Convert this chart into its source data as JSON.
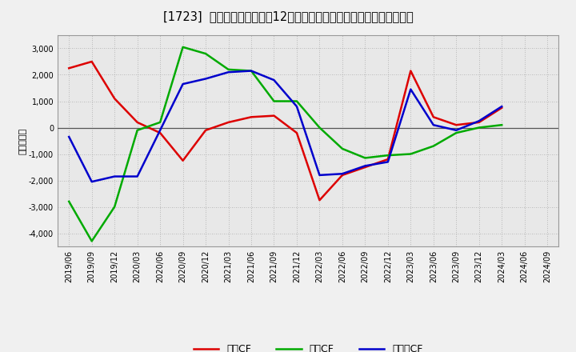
{
  "title": "[1723]  キャッシュフローの12か月移動合計の対前年同期増減額の推移",
  "ylabel": "（百万円）",
  "background_color": "#f0f0f0",
  "plot_bg_color": "#e8e8e8",
  "grid_color": "#aaaaaa",
  "ylim": [
    -4500,
    3500
  ],
  "yticks": [
    -4000,
    -3000,
    -2000,
    -1000,
    0,
    1000,
    2000,
    3000
  ],
  "x_labels": [
    "2019/06",
    "2019/09",
    "2019/12",
    "2020/03",
    "2020/06",
    "2020/09",
    "2020/12",
    "2021/03",
    "2021/06",
    "2021/09",
    "2021/12",
    "2022/03",
    "2022/06",
    "2022/09",
    "2022/12",
    "2023/03",
    "2023/06",
    "2023/09",
    "2023/12",
    "2024/03",
    "2024/06",
    "2024/09"
  ],
  "series": {
    "営業CF": {
      "color": "#dd0000",
      "values": [
        2250,
        2500,
        1100,
        200,
        -200,
        -1250,
        -100,
        200,
        400,
        450,
        -200,
        -2750,
        -1800,
        -1500,
        -1200,
        2150,
        400,
        100,
        200,
        750,
        null,
        null
      ]
    },
    "投資CF": {
      "color": "#00aa00",
      "values": [
        -2800,
        -4300,
        -3000,
        -100,
        200,
        3050,
        2800,
        2200,
        2150,
        1000,
        1000,
        0,
        -800,
        -1150,
        -1050,
        -1000,
        -700,
        -200,
        0,
        100,
        null,
        null
      ]
    },
    "フリーCF": {
      "color": "#0000cc",
      "values": [
        -350,
        -2050,
        -1850,
        -1850,
        -100,
        1650,
        1850,
        2100,
        2150,
        1800,
        800,
        -1800,
        -1750,
        -1450,
        -1300,
        1450,
        100,
        -100,
        250,
        800,
        null,
        null
      ]
    }
  },
  "legend_labels": [
    "営業CF",
    "投資CF",
    "フリーCF"
  ],
  "title_fontsize": 10.5,
  "tick_fontsize": 7,
  "ylabel_fontsize": 8
}
